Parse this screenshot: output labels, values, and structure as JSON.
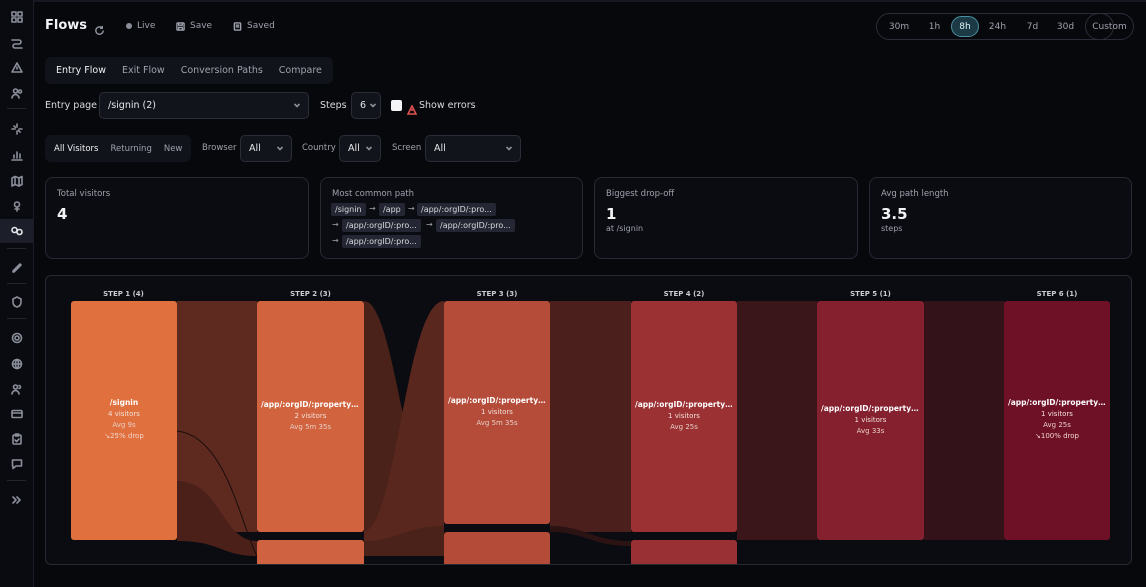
{
  "sidebar": {
    "items": [
      {
        "icon": "grid-icon"
      },
      {
        "icon": "route-icon"
      },
      {
        "icon": "alert-icon"
      },
      {
        "icon": "users-icon"
      },
      {
        "icon": "sparkle-icon"
      },
      {
        "icon": "bar-chart-icon"
      },
      {
        "icon": "map-icon"
      },
      {
        "icon": "pin-icon"
      },
      {
        "icon": "flows-icon",
        "active": true
      },
      {
        "icon": "pencil-icon"
      },
      {
        "icon": "shield-icon"
      },
      {
        "icon": "gear-icon"
      },
      {
        "icon": "globe-icon"
      },
      {
        "icon": "team-icon"
      },
      {
        "icon": "card-icon"
      },
      {
        "icon": "clipboard-icon"
      },
      {
        "icon": "chat-icon"
      },
      {
        "icon": "expand-icon"
      }
    ]
  },
  "header": {
    "title": "Flows",
    "live_label": "Live",
    "save_label": "Save",
    "saved_label": "Saved"
  },
  "time_range": {
    "options": [
      "30m",
      "1h",
      "8h",
      "24h",
      "7d",
      "30d"
    ],
    "selected": "8h",
    "custom_label": "Custom"
  },
  "tabs": [
    "Entry Flow",
    "Exit Flow",
    "Conversion Paths",
    "Compare"
  ],
  "active_tab": "Entry Flow",
  "controls": {
    "entry_page_label": "Entry page",
    "entry_page_value": "/signin (2)",
    "steps_label": "Steps",
    "steps_value": "6",
    "show_errors_label": "Show errors"
  },
  "filters": {
    "visitor_types": [
      "All Visitors",
      "Returning",
      "New"
    ],
    "visitor_selected": "All Visitors",
    "browser_label": "Browser",
    "browser_value": "All",
    "country_label": "Country",
    "country_value": "All",
    "screen_label": "Screen",
    "screen_value": "All"
  },
  "stats": {
    "total_visitors_label": "Total visitors",
    "total_visitors_value": "4",
    "common_path_label": "Most common path",
    "common_path_chips": [
      "/signin",
      "/app",
      "/app/:orgID/:pro...",
      "/app/:orgID/:pro...",
      "/app/:orgID/:pro...",
      "/app/:orgID/:pro..."
    ],
    "dropoff_label": "Biggest drop-off",
    "dropoff_value": "1",
    "dropoff_sub": "at /signin",
    "avg_len_label": "Avg path length",
    "avg_len_value": "3.5",
    "avg_len_sub": "steps"
  },
  "flow": {
    "steps": [
      {
        "title": "STEP 1 (4)",
        "path": "/signin",
        "visitors": "4 visitors",
        "avg": "Avg 9s",
        "drop": "25% drop",
        "color": "#e0703d"
      },
      {
        "title": "STEP 2 (3)",
        "path": "/app/:orgID/:propertyID/...",
        "visitors": "2 visitors",
        "avg": "Avg 5m 35s",
        "drop": "",
        "color": "#d1633e"
      },
      {
        "title": "STEP 3 (3)",
        "path": "/app/:orgID/:propertyID/...",
        "visitors": "1 visitors",
        "avg": "Avg 5m 35s",
        "drop": "",
        "color": "#b54b39"
      },
      {
        "title": "STEP 4 (2)",
        "path": "/app/:orgID/:propertyID/...",
        "visitors": "1 visitors",
        "avg": "Avg 25s",
        "drop": "",
        "color": "#9b3133"
      },
      {
        "title": "STEP 5 (1)",
        "path": "/app/:orgID/:propertyID/...",
        "visitors": "1 visitors",
        "avg": "Avg 33s",
        "drop": "",
        "color": "#85202f"
      },
      {
        "title": "STEP 6 (1)",
        "path": "/app/:orgID/:propertyID/...",
        "visitors": "1 visitors",
        "avg": "Avg 25s",
        "drop": "100% drop",
        "color": "#6e1127"
      }
    ],
    "colors": {
      "link": "#5e2a20",
      "link_dark": "#3f1d1b"
    }
  }
}
